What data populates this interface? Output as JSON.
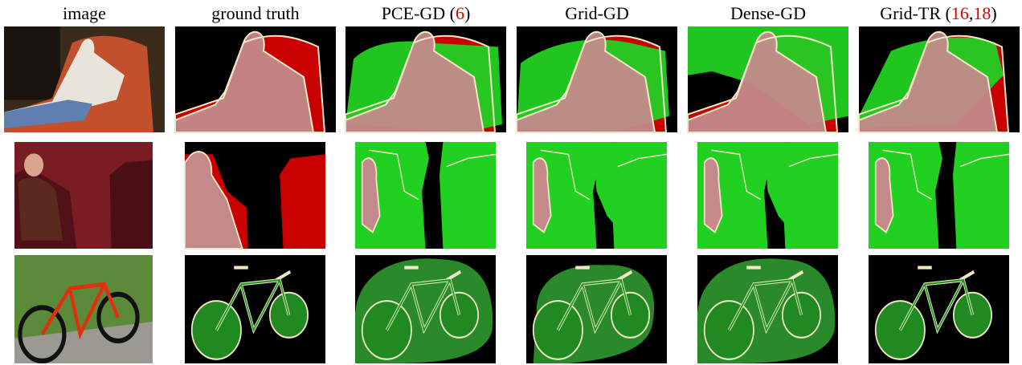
{
  "columns": [
    {
      "parts": [
        {
          "text": "image"
        }
      ]
    },
    {
      "parts": [
        {
          "text": "ground truth"
        }
      ]
    },
    {
      "parts": [
        {
          "text": "PCE-GD ("
        },
        {
          "text": "6",
          "cite": true
        },
        {
          "text": ")"
        }
      ]
    },
    {
      "parts": [
        {
          "text": "Grid-GD"
        }
      ]
    },
    {
      "parts": [
        {
          "text": "Dense-GD"
        }
      ]
    },
    {
      "parts": [
        {
          "text": "Grid-TR ("
        },
        {
          "text": "16",
          "cite": true
        },
        {
          "text": ","
        },
        {
          "text": "18",
          "cite": true
        },
        {
          "text": ")"
        }
      ]
    }
  ]
}
